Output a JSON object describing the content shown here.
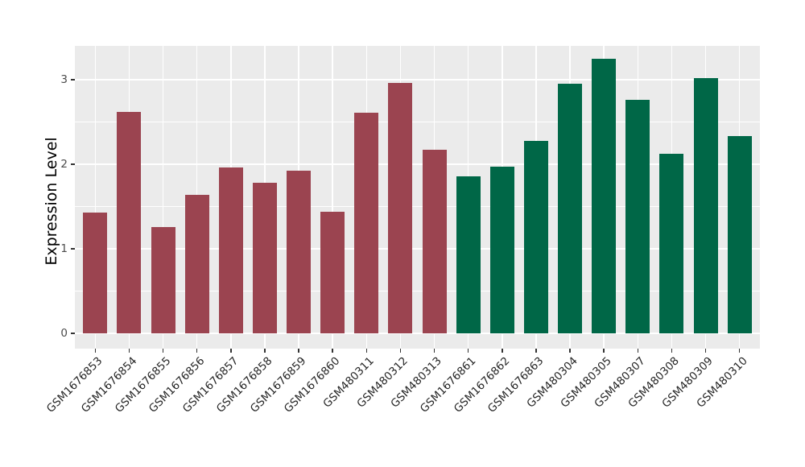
{
  "chart_data": {
    "type": "bar",
    "title": "",
    "xlabel": "",
    "ylabel": "Expression Level",
    "ylim": [
      0,
      3.41
    ],
    "yticks": [
      0,
      1,
      2,
      3
    ],
    "yticks_minor": [
      0.5,
      1.5,
      2.5
    ],
    "grid": true,
    "legend": "none",
    "categories": [
      "GSM1676853",
      "GSM1676854",
      "GSM1676855",
      "GSM1676856",
      "GSM1676857",
      "GSM1676858",
      "GSM1676859",
      "GSM1676860",
      "GSM480311",
      "GSM480312",
      "GSM480313",
      "GSM1676861",
      "GSM1676862",
      "GSM1676863",
      "GSM480304",
      "GSM480305",
      "GSM480307",
      "GSM480308",
      "GSM480309",
      "GSM480310"
    ],
    "values": [
      1.43,
      2.62,
      1.26,
      1.64,
      1.96,
      1.78,
      1.92,
      1.44,
      2.61,
      2.96,
      2.17,
      1.86,
      1.97,
      2.28,
      2.95,
      3.25,
      2.76,
      2.12,
      3.02,
      2.33
    ],
    "groups": [
      "maroon",
      "maroon",
      "maroon",
      "maroon",
      "maroon",
      "maroon",
      "maroon",
      "maroon",
      "maroon",
      "maroon",
      "maroon",
      "green",
      "green",
      "green",
      "green",
      "green",
      "green",
      "green",
      "green",
      "green"
    ],
    "colors": {
      "maroon": "#9B4450",
      "green": "#006747",
      "panel_bg": "#EBEBEB",
      "grid": "#FFFFFF",
      "axis_text": "#333333"
    }
  }
}
